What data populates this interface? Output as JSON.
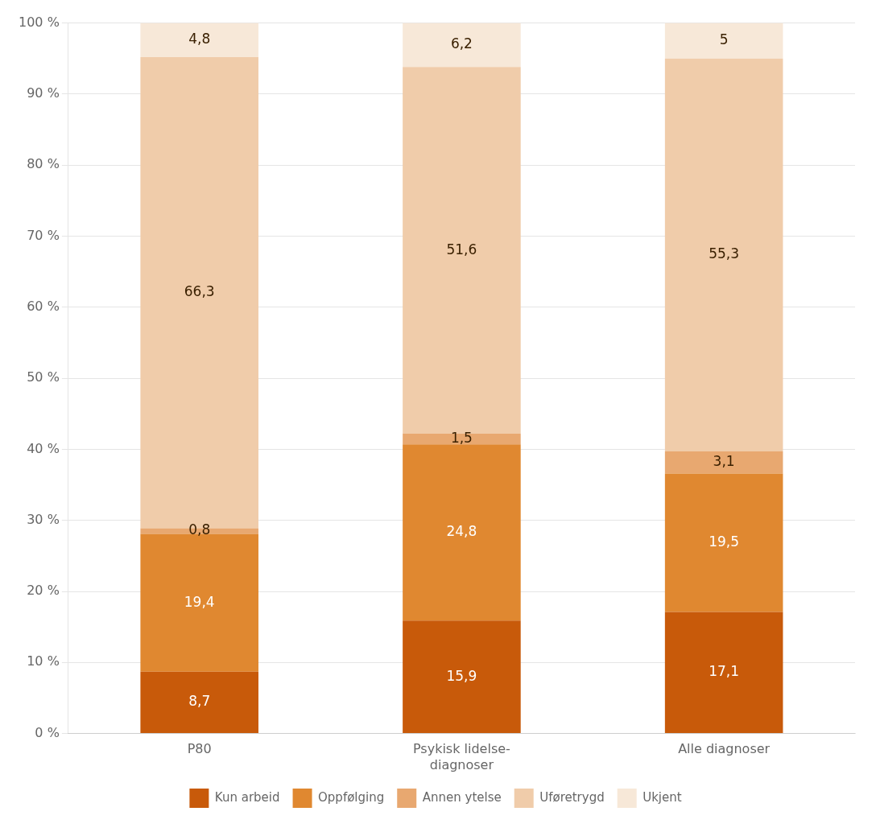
{
  "chart_data": {
    "type": "bar",
    "stacked": true,
    "categories": [
      "P80",
      "Psykisk lidelse-\ndiagnoser",
      "Alle diagnoser"
    ],
    "series": [
      {
        "name": "Kun arbeid",
        "color": "#c85a0a",
        "values": [
          8.7,
          15.9,
          17.1
        ],
        "value_labels": [
          "8,7",
          "15,9",
          "17,1"
        ]
      },
      {
        "name": "Oppfølging",
        "color": "#e08830",
        "values": [
          19.4,
          24.8,
          19.5
        ],
        "value_labels": [
          "19,4",
          "24,8",
          "19,5"
        ]
      },
      {
        "name": "Annen ytelse",
        "color": "#e8a870",
        "values": [
          0.8,
          1.5,
          3.1
        ],
        "value_labels": [
          "0,8",
          "1,5",
          "3,1"
        ]
      },
      {
        "name": "Uføretrygd",
        "color": "#f0ccaa",
        "values": [
          66.3,
          51.6,
          55.3
        ],
        "value_labels": [
          "66,3",
          "51,6",
          "55,3"
        ]
      },
      {
        "name": "Ukjent",
        "color": "#f7e8d8",
        "values": [
          4.8,
          6.2,
          5.0
        ],
        "value_labels": [
          "4,8",
          "6,2",
          "5"
        ]
      }
    ],
    "ylim": [
      0,
      100
    ],
    "yticks": [
      {
        "value": 0,
        "label": "0 %"
      },
      {
        "value": 10,
        "label": "10 %"
      },
      {
        "value": 20,
        "label": "20 %"
      },
      {
        "value": 30,
        "label": "30 %"
      },
      {
        "value": 40,
        "label": "40 %"
      },
      {
        "value": 50,
        "label": "50 %"
      },
      {
        "value": 60,
        "label": "60 %"
      },
      {
        "value": 70,
        "label": "70 %"
      },
      {
        "value": 80,
        "label": "80 %"
      },
      {
        "value": 90,
        "label": "90 %"
      },
      {
        "value": 100,
        "label": "100 %"
      }
    ],
    "grid": true,
    "legend": "bottom",
    "data_labels": true
  }
}
